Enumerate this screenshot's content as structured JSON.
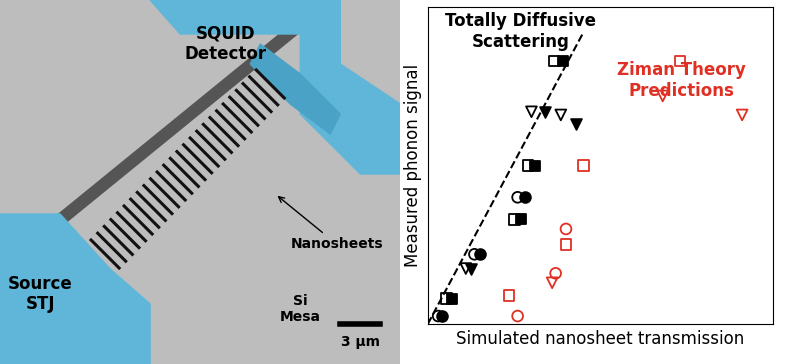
{
  "chart_data": {
    "type": "scatter",
    "x_label": "Simulated nanosheet transmission",
    "y_label": "Measured phonon signal",
    "xlim": [
      0,
      1
    ],
    "ylim": [
      0,
      1
    ],
    "tick_labels": false,
    "grid": false,
    "annotations": [
      {
        "text": "Totally Diffusive\nScattering",
        "color": "#000000"
      },
      {
        "text": "Ziman Theory\nPredictions",
        "color": "#e03024"
      }
    ],
    "fit_line": {
      "x": [
        0.0,
        0.45
      ],
      "y": [
        0.0,
        0.92
      ],
      "color": "#000000",
      "line_style": "dashed"
    },
    "series": [
      {
        "color": "#000000",
        "marker": "square",
        "x": [
          0.07,
          0.27,
          0.31,
          0.39
        ],
        "y": [
          0.08,
          0.33,
          0.5,
          0.83
        ]
      },
      {
        "color": "#000000",
        "marker": "open_square",
        "x": [
          0.055,
          0.25,
          0.29,
          0.365
        ],
        "y": [
          0.08,
          0.33,
          0.5,
          0.83
        ]
      },
      {
        "color": "#000000",
        "marker": "triangle_down",
        "x": [
          0.125,
          0.34,
          0.43
        ],
        "y": [
          0.175,
          0.67,
          0.63
        ]
      },
      {
        "color": "#000000",
        "marker": "open_triangle_down",
        "x": [
          0.11,
          0.3,
          0.385
        ],
        "y": [
          0.175,
          0.67,
          0.66
        ]
      },
      {
        "color": "#000000",
        "marker": "circle",
        "x": [
          0.04,
          0.15,
          0.28
        ],
        "y": [
          0.025,
          0.22,
          0.4
        ]
      },
      {
        "color": "#000000",
        "marker": "open_circle",
        "x": [
          0.03,
          0.135,
          0.26
        ],
        "y": [
          0.025,
          0.22,
          0.4
        ]
      },
      {
        "color": "#e03024",
        "marker": "open_circle",
        "x": [
          0.26,
          0.37,
          0.4
        ],
        "y": [
          0.025,
          0.16,
          0.3
        ]
      },
      {
        "color": "#e03024",
        "marker": "open_square",
        "x": [
          0.235,
          0.4,
          0.45,
          0.73
        ],
        "y": [
          0.09,
          0.25,
          0.5,
          0.83
        ]
      },
      {
        "color": "#e03024",
        "marker": "open_triangle_down",
        "x": [
          0.36,
          0.68,
          0.91
        ],
        "y": [
          0.13,
          0.72,
          0.66
        ]
      }
    ]
  },
  "image_panel": {
    "labels": {
      "detector": "SQUID\nDetector",
      "source": "Source\nSTJ",
      "nanosheets": "Nanosheets",
      "mesa": "Si\nMesa",
      "scale_bar": "3 µm"
    }
  }
}
